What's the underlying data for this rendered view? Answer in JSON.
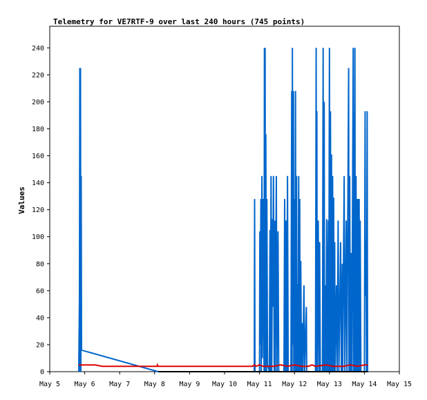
{
  "chart_data": {
    "type": "line",
    "title": "Telemetry for VE7RTF-9 over last 240 hours (745 points)",
    "xlabel": "",
    "ylabel": "Values",
    "x_unit": "day of May",
    "xlim": [
      5,
      15
    ],
    "ylim": [
      0,
      256
    ],
    "x_ticks": [
      "May 5",
      "May 6",
      "May 7",
      "May 8",
      "May 9",
      "May 10",
      "May 11",
      "May 12",
      "May 13",
      "May 14",
      "May 15"
    ],
    "y_ticks": [
      0,
      20,
      40,
      60,
      80,
      100,
      120,
      140,
      160,
      180,
      200,
      220,
      240
    ],
    "grid": false,
    "legend": "none",
    "series": [
      {
        "color": "#0066cc",
        "points": [
          [
            5.83,
            0
          ],
          [
            5.85,
            56
          ],
          [
            5.86,
            225
          ],
          [
            5.87,
            0
          ],
          [
            5.88,
            225
          ],
          [
            5.89,
            0
          ],
          [
            5.9,
            145
          ],
          [
            5.91,
            16
          ],
          [
            8.1,
            0
          ],
          [
            8.12,
            0
          ],
          [
            10.85,
            0
          ],
          [
            10.86,
            128
          ],
          [
            10.87,
            0
          ],
          [
            11.0,
            0
          ],
          [
            11.01,
            104
          ],
          [
            11.02,
            20
          ],
          [
            11.04,
            128
          ],
          [
            11.05,
            0
          ],
          [
            11.07,
            145
          ],
          [
            11.08,
            10
          ],
          [
            11.1,
            128
          ],
          [
            11.11,
            72
          ],
          [
            11.13,
            0
          ],
          [
            11.14,
            240
          ],
          [
            11.15,
            0
          ],
          [
            11.16,
            240
          ],
          [
            11.17,
            0
          ],
          [
            11.18,
            176
          ],
          [
            11.2,
            0
          ],
          [
            11.21,
            128
          ],
          [
            11.23,
            5
          ],
          [
            11.28,
            0
          ],
          [
            11.3,
            105
          ],
          [
            11.31,
            0
          ],
          [
            11.33,
            145
          ],
          [
            11.35,
            0
          ],
          [
            11.37,
            113
          ],
          [
            11.38,
            48
          ],
          [
            11.4,
            145
          ],
          [
            11.42,
            0
          ],
          [
            11.44,
            112
          ],
          [
            11.45,
            0
          ],
          [
            11.48,
            145
          ],
          [
            11.5,
            0
          ],
          [
            11.53,
            104
          ],
          [
            11.55,
            0
          ],
          [
            11.7,
            0
          ],
          [
            11.72,
            128
          ],
          [
            11.74,
            0
          ],
          [
            11.76,
            112
          ],
          [
            11.78,
            0
          ],
          [
            11.8,
            145
          ],
          [
            11.82,
            0
          ],
          [
            11.9,
            0
          ],
          [
            11.92,
            208
          ],
          [
            11.93,
            0
          ],
          [
            11.94,
            240
          ],
          [
            11.95,
            20
          ],
          [
            11.97,
            208
          ],
          [
            11.98,
            0
          ],
          [
            12.0,
            128
          ],
          [
            12.01,
            0
          ],
          [
            12.03,
            208
          ],
          [
            12.04,
            0
          ],
          [
            12.06,
            145
          ],
          [
            12.07,
            0
          ],
          [
            12.09,
            65
          ],
          [
            12.1,
            0
          ],
          [
            12.12,
            145
          ],
          [
            12.13,
            0
          ],
          [
            12.15,
            128
          ],
          [
            12.16,
            0
          ],
          [
            12.18,
            82
          ],
          [
            12.2,
            0
          ],
          [
            12.22,
            36
          ],
          [
            12.24,
            0
          ],
          [
            12.27,
            64
          ],
          [
            12.29,
            0
          ],
          [
            12.34,
            48
          ],
          [
            12.35,
            0
          ],
          [
            12.6,
            0
          ],
          [
            12.62,
            240
          ],
          [
            12.63,
            0
          ],
          [
            12.64,
            193
          ],
          [
            12.65,
            0
          ],
          [
            12.68,
            112
          ],
          [
            12.7,
            0
          ],
          [
            12.72,
            96
          ],
          [
            12.74,
            0
          ],
          [
            12.8,
            0
          ],
          [
            12.82,
            240
          ],
          [
            12.83,
            0
          ],
          [
            12.85,
            200
          ],
          [
            12.86,
            0
          ],
          [
            12.88,
            64
          ],
          [
            12.9,
            0
          ],
          [
            12.92,
            113
          ],
          [
            12.94,
            0
          ],
          [
            12.97,
            112
          ],
          [
            12.98,
            0
          ],
          [
            13.0,
            240
          ],
          [
            13.01,
            0
          ],
          [
            13.03,
            193
          ],
          [
            13.04,
            0
          ],
          [
            13.06,
            161
          ],
          [
            13.07,
            0
          ],
          [
            13.09,
            145
          ],
          [
            13.1,
            0
          ],
          [
            13.12,
            129
          ],
          [
            13.13,
            0
          ],
          [
            13.15,
            96
          ],
          [
            13.16,
            0
          ],
          [
            13.2,
            64
          ],
          [
            13.22,
            0
          ],
          [
            13.25,
            112
          ],
          [
            13.27,
            0
          ],
          [
            13.32,
            96
          ],
          [
            13.34,
            0
          ],
          [
            13.37,
            80
          ],
          [
            13.38,
            0
          ],
          [
            13.42,
            145
          ],
          [
            13.44,
            0
          ],
          [
            13.48,
            112
          ],
          [
            13.5,
            0
          ],
          [
            13.55,
            225
          ],
          [
            13.56,
            0
          ],
          [
            13.58,
            145
          ],
          [
            13.6,
            0
          ],
          [
            13.62,
            88
          ],
          [
            13.64,
            0
          ],
          [
            13.68,
            240
          ],
          [
            13.69,
            0
          ],
          [
            13.7,
            192
          ],
          [
            13.71,
            0
          ],
          [
            13.73,
            240
          ],
          [
            13.74,
            0
          ],
          [
            13.76,
            145
          ],
          [
            13.77,
            0
          ],
          [
            13.79,
            128
          ],
          [
            13.8,
            0
          ],
          [
            13.82,
            128
          ],
          [
            13.83,
            0
          ],
          [
            13.85,
            128
          ],
          [
            13.86,
            0
          ],
          [
            13.88,
            112
          ],
          [
            13.9,
            0
          ],
          [
            14.0,
            0
          ],
          [
            14.02,
            193
          ],
          [
            14.03,
            56
          ],
          [
            14.05,
            97
          ],
          [
            14.06,
            0
          ],
          [
            14.08,
            193
          ],
          [
            14.09,
            0
          ]
        ]
      },
      {
        "color": "#dd0000",
        "points": [
          [
            5.83,
            5
          ],
          [
            6.0,
            5
          ],
          [
            6.3,
            5
          ],
          [
            6.5,
            4
          ],
          [
            7.0,
            4
          ],
          [
            8.0,
            4
          ],
          [
            8.07,
            4
          ],
          [
            8.08,
            5
          ],
          [
            8.1,
            4
          ],
          [
            9.0,
            4
          ],
          [
            10.0,
            4
          ],
          [
            10.6,
            4
          ],
          [
            10.7,
            4
          ],
          [
            10.8,
            4
          ],
          [
            10.85,
            5
          ],
          [
            10.9,
            4
          ],
          [
            11.0,
            5
          ],
          [
            11.1,
            4
          ],
          [
            11.4,
            4
          ],
          [
            11.6,
            5
          ],
          [
            11.8,
            4
          ],
          [
            12.0,
            5
          ],
          [
            12.2,
            4
          ],
          [
            12.4,
            4
          ],
          [
            12.5,
            5
          ],
          [
            12.6,
            4
          ],
          [
            12.9,
            5
          ],
          [
            13.1,
            4
          ],
          [
            13.4,
            4
          ],
          [
            13.6,
            5
          ],
          [
            13.8,
            4
          ],
          [
            14.0,
            5
          ],
          [
            14.1,
            5
          ]
        ]
      },
      {
        "color": "#000000",
        "points": [
          [
            8.1,
            0
          ],
          [
            11.0,
            0
          ],
          [
            14.1,
            0
          ]
        ]
      }
    ]
  }
}
